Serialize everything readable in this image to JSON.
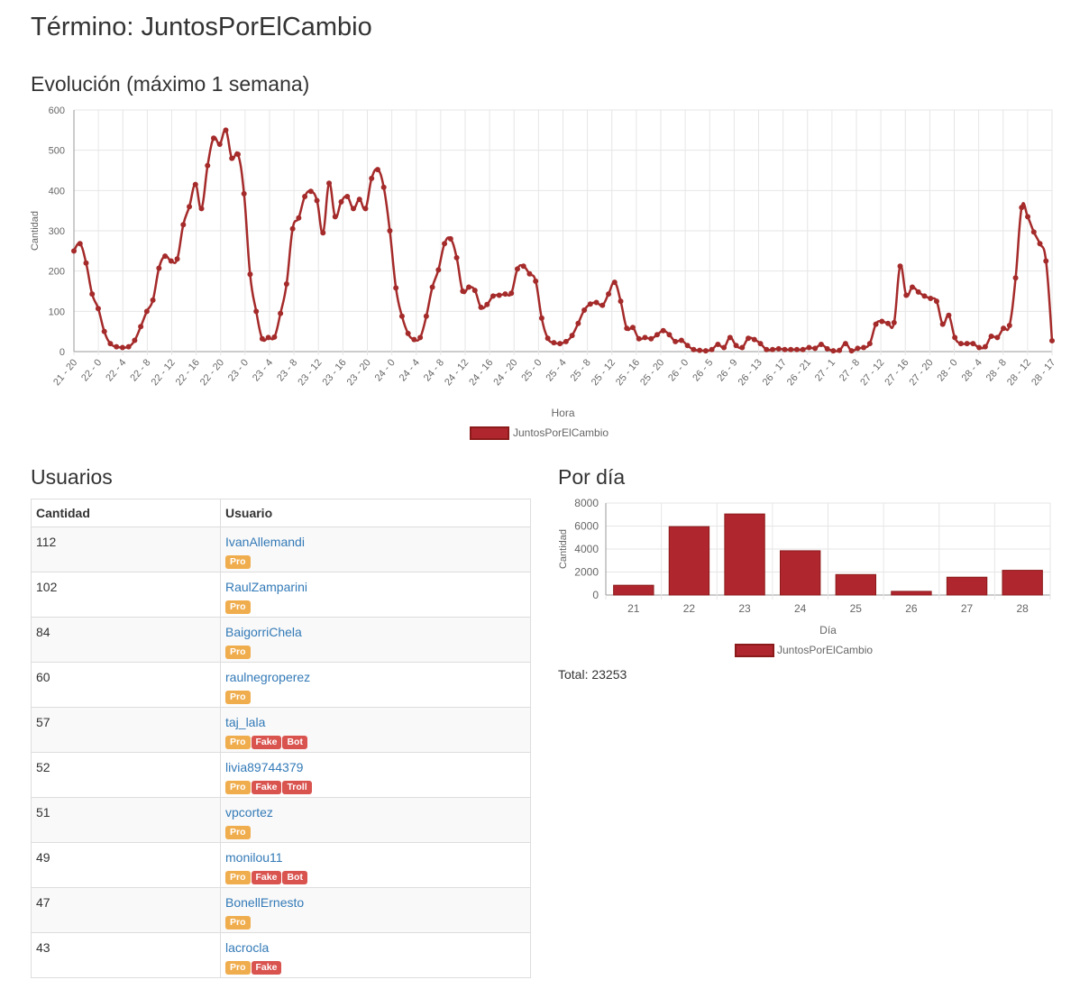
{
  "page": {
    "title": "Término: JuntosPorElCambio",
    "section_evolucion": "Evolución (máximo 1 semana)",
    "section_usuarios": "Usuarios",
    "section_pordia": "Por día",
    "total_label": "Total: 23253"
  },
  "table": {
    "headers": [
      "Cantidad",
      "Usuario"
    ],
    "rows": [
      {
        "count": "112",
        "user": "IvanAllemandi",
        "badges": [
          "Pro"
        ]
      },
      {
        "count": "102",
        "user": "RaulZamparini",
        "badges": [
          "Pro"
        ]
      },
      {
        "count": "84",
        "user": "BaigorriChela",
        "badges": [
          "Pro"
        ]
      },
      {
        "count": "60",
        "user": "raulnegroperez",
        "badges": [
          "Pro"
        ]
      },
      {
        "count": "57",
        "user": "taj_lala",
        "badges": [
          "Pro",
          "Fake",
          "Bot"
        ]
      },
      {
        "count": "52",
        "user": "livia89744379",
        "badges": [
          "Pro",
          "Fake",
          "Troll"
        ]
      },
      {
        "count": "51",
        "user": "vpcortez",
        "badges": [
          "Pro"
        ]
      },
      {
        "count": "49",
        "user": "monilou11",
        "badges": [
          "Pro",
          "Fake",
          "Bot"
        ]
      },
      {
        "count": "47",
        "user": "BonellErnesto",
        "badges": [
          "Pro"
        ]
      },
      {
        "count": "43",
        "user": "lacrocla",
        "badges": [
          "Pro",
          "Fake"
        ]
      }
    ]
  },
  "colors": {
    "series": "#a52a2a",
    "series_fill": "#b0262e",
    "pro": "#f0ad4e",
    "danger": "#d9534f",
    "link": "#337ab7"
  },
  "chart_data": [
    {
      "type": "line",
      "xlabel": "Hora",
      "ylabel": "Cantidad",
      "ylim": [
        0,
        600
      ],
      "yticks": [
        0,
        100,
        200,
        300,
        400,
        500,
        600
      ],
      "grid": true,
      "legend": "bottom",
      "x_tick_labels": [
        "21 - 20",
        "22 - 0",
        "22 - 4",
        "22 - 8",
        "22 - 12",
        "22 - 16",
        "22 - 20",
        "23 - 0",
        "23 - 4",
        "23 - 8",
        "23 - 12",
        "23 - 16",
        "23 - 20",
        "24 - 0",
        "24 - 4",
        "24 - 8",
        "24 - 12",
        "24 - 16",
        "24 - 20",
        "25 - 0",
        "25 - 4",
        "25 - 8",
        "25 - 12",
        "25 - 16",
        "25 - 20",
        "26 - 0",
        "26 - 5",
        "26 - 9",
        "26 - 13",
        "26 - 17",
        "26 - 21",
        "27 - 1",
        "27 - 8",
        "27 - 12",
        "27 - 16",
        "27 - 20",
        "28 - 0",
        "28 - 4",
        "28 - 8",
        "28 - 12",
        "28 - 17"
      ],
      "series": [
        {
          "name": "JuntosPorElCambio",
          "values": [
            250,
            268,
            220,
            143,
            107,
            50,
            20,
            12,
            10,
            12,
            28,
            62,
            100,
            128,
            207,
            237,
            225,
            230,
            315,
            360,
            415,
            355,
            462,
            530,
            515,
            550,
            480,
            490,
            392,
            192,
            100,
            32,
            35,
            36,
            95,
            168,
            305,
            332,
            385,
            398,
            375,
            295,
            418,
            335,
            372,
            385,
            355,
            378,
            355,
            430,
            452,
            408,
            300,
            158,
            88,
            45,
            30,
            35,
            88,
            160,
            203,
            268,
            280,
            233,
            150,
            160,
            152,
            110,
            117,
            138,
            140,
            143,
            145,
            205,
            212,
            193,
            175,
            83,
            33,
            22,
            20,
            25,
            40,
            70,
            103,
            118,
            122,
            115,
            143,
            172,
            125,
            58,
            60,
            32,
            35,
            32,
            42,
            52,
            42,
            25,
            28,
            15,
            5,
            3,
            2,
            5,
            18,
            10,
            35,
            15,
            10,
            33,
            30,
            20,
            5,
            5,
            7,
            5,
            5,
            5,
            5,
            10,
            8,
            18,
            7,
            2,
            3,
            20,
            2,
            8,
            10,
            20,
            68,
            75,
            70,
            72,
            212,
            140,
            160,
            148,
            138,
            132,
            125,
            68,
            90,
            35,
            20,
            20,
            20,
            10,
            12,
            38,
            35,
            58,
            65,
            183,
            358,
            335,
            297,
            268,
            225,
            27
          ]
        }
      ]
    },
    {
      "type": "bar",
      "xlabel": "Día",
      "ylabel": "Cantidad",
      "ylim": [
        0,
        8000
      ],
      "yticks": [
        0,
        2000,
        4000,
        6000,
        8000
      ],
      "grid": true,
      "legend": "bottom",
      "categories": [
        "21",
        "22",
        "23",
        "24",
        "25",
        "26",
        "27",
        "28"
      ],
      "series": [
        {
          "name": "JuntosPorElCambio",
          "values": [
            850,
            5950,
            7050,
            3850,
            1780,
            320,
            1550,
            2150
          ]
        }
      ]
    }
  ]
}
